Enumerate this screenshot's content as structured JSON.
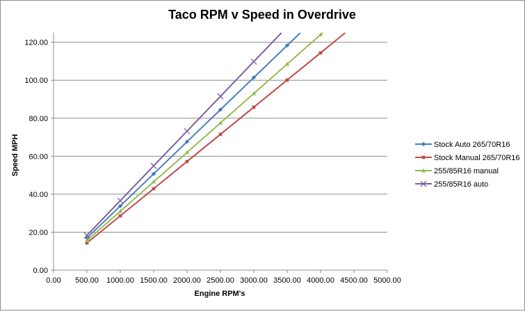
{
  "chart_data": {
    "type": "line",
    "title": "Taco RPM v Speed in Overdrive",
    "xlabel": "Engine RPM's",
    "ylabel": "Speed MPH",
    "xlim": [
      0,
      5000
    ],
    "ylim": [
      0,
      125
    ],
    "x_ticks": [
      0,
      500,
      1000,
      1500,
      2000,
      2500,
      3000,
      3500,
      4000,
      4500,
      5000
    ],
    "y_ticks": [
      0,
      20,
      40,
      60,
      80,
      100,
      120
    ],
    "tick_format_decimals": 2,
    "grid": "horizontal",
    "legend_position": "right",
    "series": [
      {
        "name": "Stock Auto 265/70R16",
        "color": "#4a7ebb",
        "marker": "diamond",
        "x": [
          500,
          1000,
          1500,
          2000,
          2500,
          3000,
          3500
        ],
        "values": [
          16.9,
          33.8,
          50.7,
          67.6,
          84.5,
          101.4,
          118.3
        ]
      },
      {
        "name": "Stock Manual 265/70R16",
        "color": "#be4b48",
        "marker": "square",
        "x": [
          500,
          1000,
          1500,
          2000,
          2500,
          3000,
          3500,
          4000
        ],
        "values": [
          14.3,
          28.6,
          42.9,
          57.2,
          71.5,
          85.8,
          100.1,
          114.4
        ]
      },
      {
        "name": "255/85R16 manual",
        "color": "#98b954",
        "marker": "triangle",
        "x": [
          500,
          1000,
          1500,
          2000,
          2500,
          3000,
          3500,
          4000
        ],
        "values": [
          15.5,
          31.0,
          46.5,
          62.0,
          77.5,
          93.0,
          108.5,
          124.0
        ]
      },
      {
        "name": "255/85R16 auto",
        "color": "#7d60a0",
        "marker": "x",
        "x": [
          500,
          1000,
          1500,
          2000,
          2500,
          3000
        ],
        "values": [
          18.3,
          36.6,
          54.9,
          73.2,
          91.5,
          109.8
        ]
      }
    ]
  }
}
